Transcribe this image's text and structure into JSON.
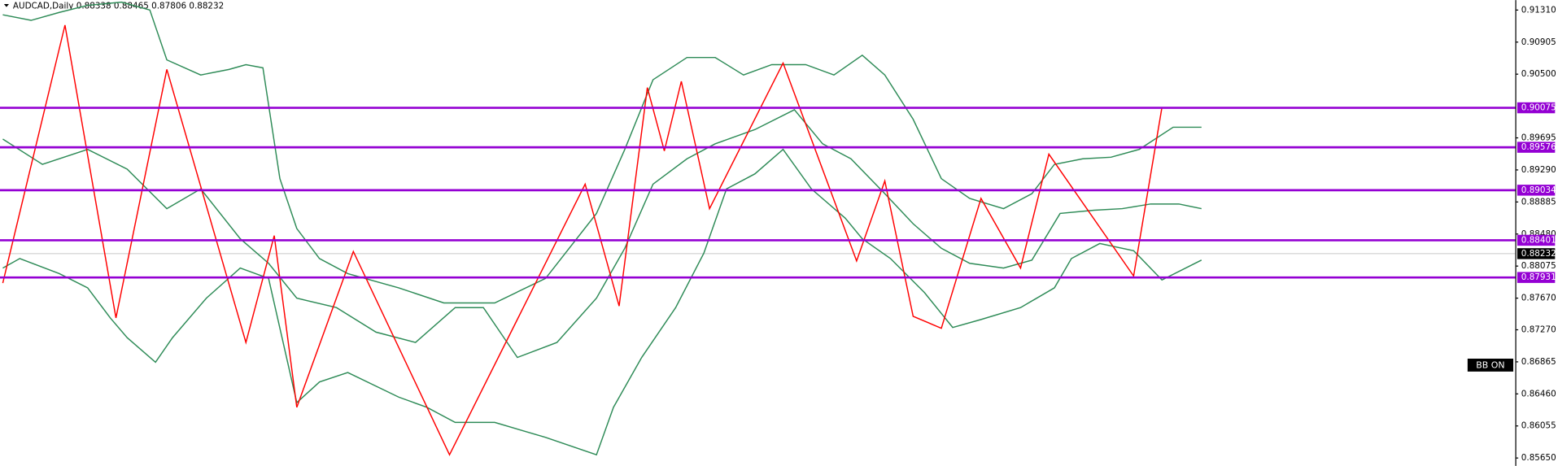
{
  "chart_data": {
    "type": "line",
    "title": "AUDCAD,Daily 0.88338 0.88465 0.87806 0.88232",
    "indicator_label": "BB ON",
    "xlim": [
      -0.5,
      267.5
    ],
    "ylim": [
      0.8555,
      0.91436
    ],
    "yticks": [
      {
        "value": 0.9131,
        "label": "0.91310"
      },
      {
        "value": 0.90905,
        "label": "0.90905"
      },
      {
        "value": 0.905,
        "label": "0.90500"
      },
      {
        "value": 0.89695,
        "label": "0.89695"
      },
      {
        "value": 0.8929,
        "label": "0.89290"
      },
      {
        "value": 0.88885,
        "label": "0.88885"
      },
      {
        "value": 0.8848,
        "label": "0.88480"
      },
      {
        "value": 0.88075,
        "label": "0.88075"
      },
      {
        "value": 0.8767,
        "label": "0.87670"
      },
      {
        "value": 0.8727,
        "label": "0.87270"
      },
      {
        "value": 0.86865,
        "label": "0.86865"
      },
      {
        "value": 0.8646,
        "label": "0.86460"
      },
      {
        "value": 0.86055,
        "label": "0.86055"
      },
      {
        "value": 0.8565,
        "label": "0.85650"
      }
    ],
    "levels": {
      "color": "#9400d3",
      "values": [
        0.90075,
        0.89576,
        0.89034,
        0.88401,
        0.87931
      ]
    },
    "current_price": {
      "color": "#000000",
      "value": 0.88232
    },
    "zigzag": {
      "color": "#ff0000",
      "x": [
        0,
        11,
        20,
        29,
        43,
        48,
        52,
        62,
        79,
        103,
        109,
        114,
        117,
        120,
        125,
        138,
        151,
        156,
        161,
        166,
        173,
        180,
        185,
        200,
        205
      ],
      "values": [
        0.8786,
        0.9112,
        0.8742,
        0.9056,
        0.8711,
        0.8846,
        0.8629,
        0.8826,
        0.8569,
        0.8911,
        0.8757,
        0.9033,
        0.8953,
        0.9041,
        0.888,
        0.9064,
        0.8814,
        0.8915,
        0.8744,
        0.8729,
        0.8893,
        0.8805,
        0.8949,
        0.8795,
        0.9008
      ]
    },
    "bollinger_bands": [
      {
        "color": "#2e8b57",
        "x": [
          0,
          5,
          10,
          15,
          21,
          26,
          29,
          35,
          40,
          43,
          46,
          49,
          52,
          56,
          61,
          70,
          78,
          87,
          96,
          105,
          110,
          115,
          121,
          126,
          131,
          136,
          142,
          147,
          152,
          156,
          161,
          166,
          171,
          177,
          182,
          186,
          191,
          196,
          201,
          207,
          212
        ],
        "values": [
          0.9125,
          0.9118,
          0.9128,
          0.9137,
          0.9141,
          0.9131,
          0.9068,
          0.9049,
          0.9056,
          0.9062,
          0.9058,
          0.8918,
          0.8855,
          0.8817,
          0.8798,
          0.878,
          0.8761,
          0.8761,
          0.8792,
          0.8874,
          0.8955,
          0.9043,
          0.9071,
          0.9071,
          0.9049,
          0.9062,
          0.9062,
          0.9049,
          0.9074,
          0.9049,
          0.8993,
          0.8918,
          0.8893,
          0.888,
          0.8899,
          0.8936,
          0.8943,
          0.8945,
          0.8955,
          0.8983,
          0.8983
        ]
      },
      {
        "color": "#2e8b57",
        "x": [
          0,
          7,
          15,
          22,
          29,
          35,
          42,
          47,
          52,
          59,
          66,
          73,
          80,
          85,
          91,
          98,
          105,
          110,
          115,
          121,
          126,
          133,
          140,
          145,
          150,
          156,
          161,
          166,
          171,
          177,
          182,
          187,
          193,
          198,
          203,
          208,
          212
        ],
        "values": [
          0.8968,
          0.8936,
          0.8955,
          0.893,
          0.888,
          0.8905,
          0.8842,
          0.8811,
          0.8767,
          0.8755,
          0.8724,
          0.8711,
          0.8755,
          0.8755,
          0.8692,
          0.8711,
          0.8767,
          0.883,
          0.8911,
          0.8943,
          0.8962,
          0.898,
          0.9005,
          0.8962,
          0.8943,
          0.8899,
          0.8861,
          0.883,
          0.8811,
          0.8805,
          0.8815,
          0.8874,
          0.8878,
          0.888,
          0.8886,
          0.8886,
          0.888
        ]
      },
      {
        "color": "#2e8b57",
        "x": [
          0,
          3,
          10,
          15,
          19,
          22,
          27,
          30,
          36,
          42,
          47,
          52,
          56,
          61,
          70,
          75,
          80,
          87,
          96,
          105,
          108,
          113,
          119,
          124,
          128,
          133,
          138,
          143,
          149,
          152,
          157,
          163,
          168,
          173,
          180,
          186,
          189,
          194,
          200,
          205,
          212
        ],
        "values": [
          0.8805,
          0.8817,
          0.8798,
          0.878,
          0.8742,
          0.8717,
          0.8686,
          0.8717,
          0.8767,
          0.8805,
          0.8792,
          0.8635,
          0.8661,
          0.8673,
          0.8642,
          0.8629,
          0.861,
          0.861,
          0.8591,
          0.8569,
          0.8629,
          0.8692,
          0.8755,
          0.8824,
          0.8905,
          0.8924,
          0.8955,
          0.8905,
          0.8868,
          0.8842,
          0.8817,
          0.8774,
          0.873,
          0.874,
          0.8755,
          0.878,
          0.8817,
          0.8836,
          0.8827,
          0.879,
          0.8815
        ]
      }
    ]
  }
}
